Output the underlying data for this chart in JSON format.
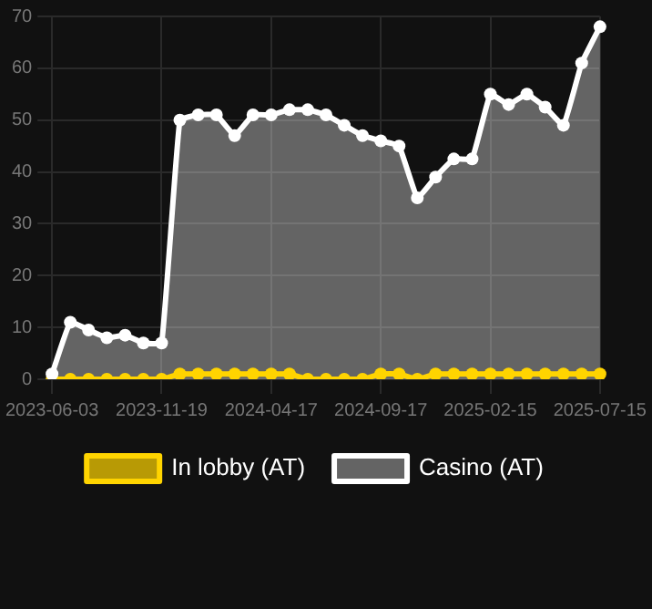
{
  "chart_data": {
    "type": "line",
    "categories": [
      "2023-06-03",
      null,
      null,
      null,
      null,
      null,
      "2023-11-19",
      null,
      null,
      null,
      null,
      null,
      "2024-04-17",
      null,
      null,
      null,
      null,
      null,
      "2024-09-17",
      null,
      null,
      null,
      null,
      null,
      "2025-02-15",
      null,
      null,
      null,
      null,
      null,
      "2025-07-15"
    ],
    "series": [
      {
        "name": "In lobby (AT)",
        "type": "line",
        "color": "#ffd400",
        "values": [
          0,
          0,
          0,
          0,
          0,
          0,
          0,
          1,
          1,
          1,
          1,
          1,
          1,
          1,
          0,
          0,
          0,
          0,
          1,
          1,
          0,
          1,
          1,
          1,
          1,
          1,
          1,
          1,
          1,
          1,
          1
        ]
      },
      {
        "name": "Casino (AT)",
        "type": "area",
        "color": "#ffffff",
        "values": [
          1,
          11,
          9.5,
          8,
          8.5,
          7,
          7,
          50,
          51,
          51,
          47,
          51,
          51,
          52,
          52,
          51,
          49,
          47,
          46,
          45,
          35,
          39,
          42.5,
          42.5,
          55,
          53,
          55,
          52.5,
          49,
          61,
          68
        ]
      }
    ],
    "ylim": [
      0,
      70
    ],
    "yticks": [
      0,
      10,
      20,
      30,
      40,
      50,
      60,
      70
    ],
    "grid": true,
    "legend": "bottom",
    "marker": "circle",
    "line_style": "solid"
  }
}
